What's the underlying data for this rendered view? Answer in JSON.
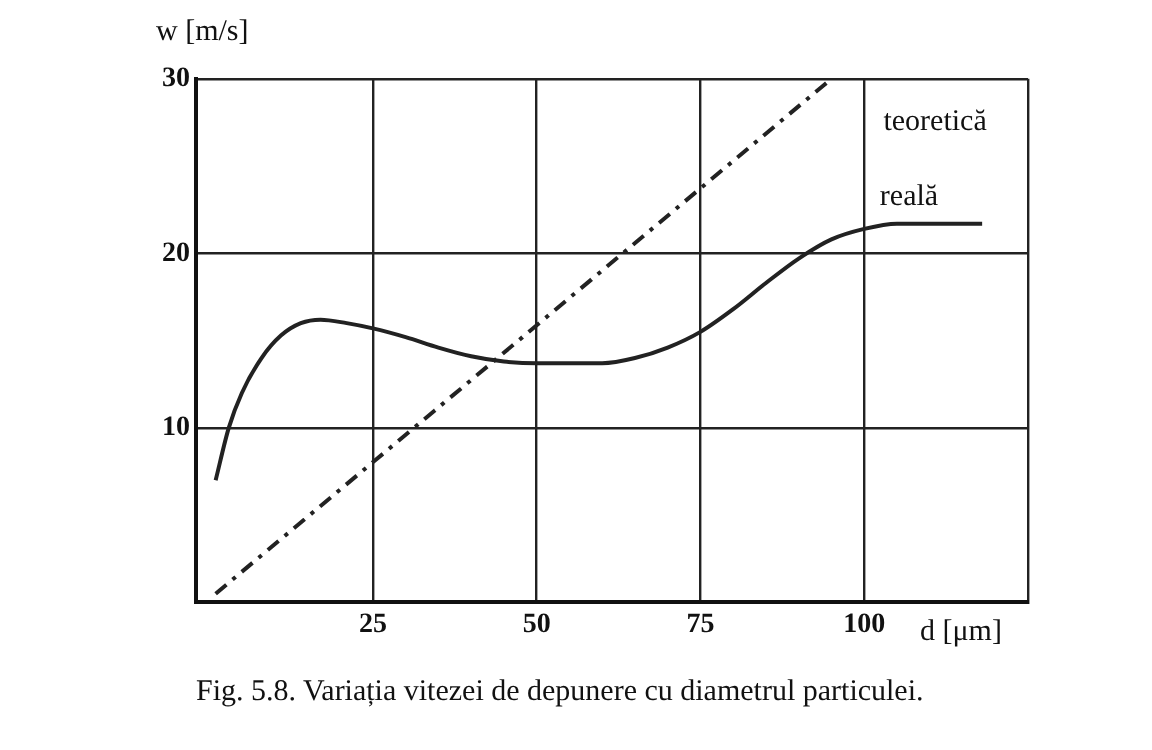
{
  "chart_data": {
    "type": "line",
    "xlabel": "d [μm]",
    "ylabel": "w [m/s]",
    "xlim": [
      -2,
      125
    ],
    "ylim": [
      0,
      30
    ],
    "xticks": [
      25,
      50,
      75,
      100,
      {
        "value": 125,
        "label": null
      }
    ],
    "yticks": [
      10,
      20,
      30
    ],
    "grid": true,
    "legend": false,
    "marker": "none",
    "series": [
      {
        "name": "teoretică",
        "color": "#222222",
        "line_style": "dashed",
        "x": [
          1,
          95
        ],
        "values": [
          0.5,
          30
        ]
      },
      {
        "name": "reală",
        "color": "#222222",
        "line_style": "solid",
        "x": [
          1,
          3,
          5,
          8,
          11,
          14,
          17,
          21,
          25,
          30,
          35,
          40,
          45,
          50,
          55,
          60,
          65,
          70,
          75,
          80,
          85,
          90,
          95,
          100,
          105,
          110,
          118
        ],
        "values": [
          7,
          10,
          12,
          14,
          15.3,
          16,
          16.2,
          16,
          15.7,
          15.2,
          14.6,
          14.1,
          13.8,
          13.7,
          13.7,
          13.7,
          14,
          14.6,
          15.5,
          16.8,
          18.3,
          19.7,
          20.8,
          21.4,
          21.7,
          21.7,
          21.7
        ]
      }
    ],
    "annotations": [
      "Fig. 5.8. Variația vitezei de depunere cu diametrul particulei."
    ]
  }
}
